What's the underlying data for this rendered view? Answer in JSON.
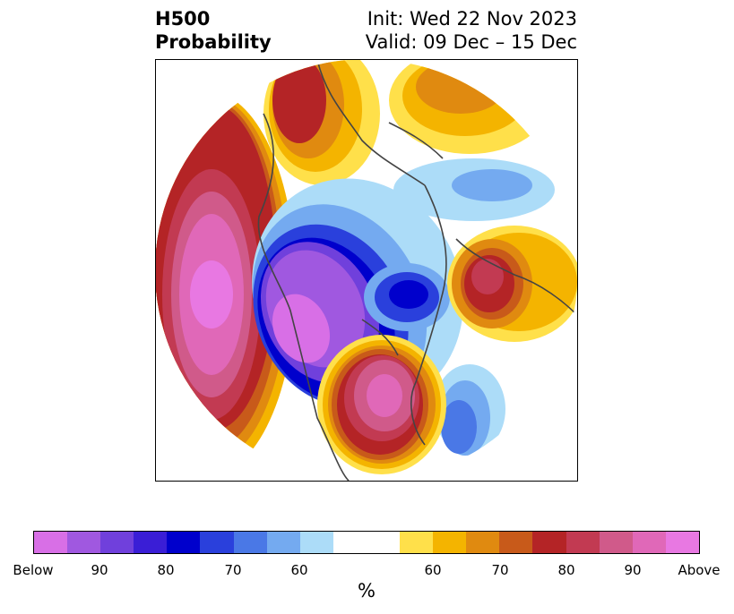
{
  "header": {
    "title_line1": "H500",
    "title_line2": "Probability",
    "init": "Init: Wed 22 Nov 2023",
    "valid": "Valid: 09 Dec – 15 Dec"
  },
  "colorbar": {
    "below_colors": [
      "#d86fe6",
      "#a058e0",
      "#7040dc",
      "#3a1ed6",
      "#0000cc",
      "#2a40dc",
      "#4a78e6",
      "#74aaf0",
      "#acdcf8"
    ],
    "neutral_color": "#ffffff",
    "above_colors": [
      "#ffe04a",
      "#f4b400",
      "#e08a10",
      "#c85a1a",
      "#b42426",
      "#c23a52",
      "#d05a8a",
      "#e068b8",
      "#e878e2"
    ],
    "tick_labels": [
      "Below",
      "90",
      "80",
      "70",
      "60",
      "60",
      "70",
      "80",
      "90",
      "Above"
    ],
    "units_label": "%"
  },
  "map": {
    "projection": "north-polar-stereographic",
    "background": "#ffffff",
    "coastline_color": "#444444",
    "anomalies": [
      {
        "region": "north pacific",
        "sign": "above",
        "peak_percent": 100
      },
      {
        "region": "western canada / alaska",
        "sign": "below",
        "peak_percent": 100
      },
      {
        "region": "eastern united states",
        "sign": "above",
        "peak_percent": 95
      },
      {
        "region": "greenland / north atlantic",
        "sign": "below",
        "peak_percent": 85
      },
      {
        "region": "western europe",
        "sign": "above",
        "peak_percent": 85
      },
      {
        "region": "siberia",
        "sign": "above",
        "peak_percent": 75
      },
      {
        "region": "arctic russia",
        "sign": "below",
        "peak_percent": 60
      }
    ]
  }
}
